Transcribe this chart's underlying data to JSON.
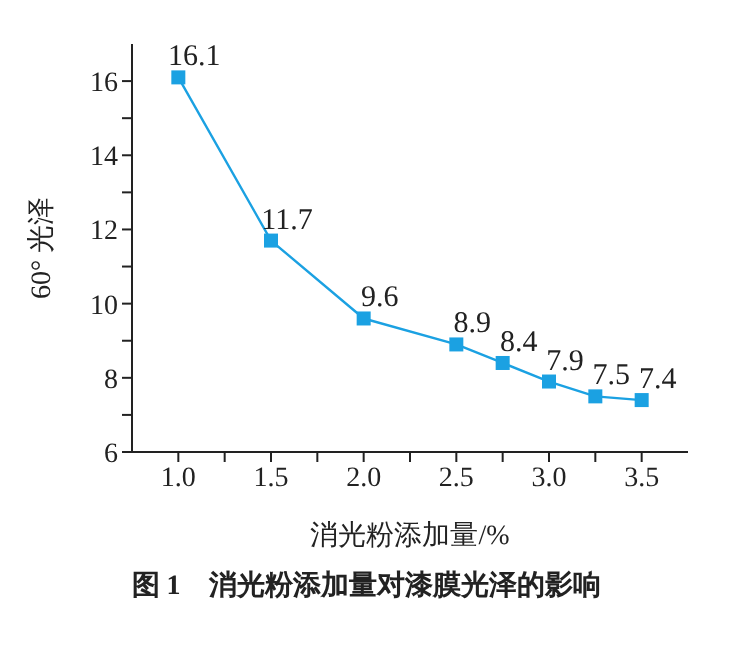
{
  "chart_data": {
    "type": "line",
    "xlabel": "消光粉添加量/%",
    "ylabel": "60° 光泽",
    "annotations": [
      "图 1　消光粉添加量对漆膜光泽的影响"
    ],
    "x": [
      1.0,
      1.5,
      2.0,
      2.5,
      2.75,
      3.0,
      3.25,
      3.5
    ],
    "series": [
      {
        "color": "#1ba1e2",
        "values": [
          16.1,
          11.7,
          9.6,
          8.9,
          8.4,
          7.9,
          7.5,
          7.4
        ]
      }
    ],
    "xlim": [
      0.75,
      3.75
    ],
    "ylim": [
      6,
      17
    ],
    "xticks": [
      {
        "value": 1.0,
        "label": "1.0"
      },
      {
        "value": 1.25,
        "label": null
      },
      {
        "value": 1.5,
        "label": "1.5"
      },
      {
        "value": 1.75,
        "label": null
      },
      {
        "value": 2.0,
        "label": "2.0"
      },
      {
        "value": 2.25,
        "label": null
      },
      {
        "value": 2.5,
        "label": "2.5"
      },
      {
        "value": 2.75,
        "label": null
      },
      {
        "value": 3.0,
        "label": "3.0"
      },
      {
        "value": 3.25,
        "label": null
      },
      {
        "value": 3.5,
        "label": "3.5"
      }
    ],
    "yticks": [
      6,
      {
        "value": 7,
        "label": null
      },
      8,
      {
        "value": 9,
        "label": null
      },
      10,
      {
        "value": 11,
        "label": null
      },
      12,
      {
        "value": 13,
        "label": null
      },
      14,
      {
        "value": 15,
        "label": null
      },
      16
    ],
    "data_labels": true,
    "marker": "square",
    "line_style": "solid"
  }
}
